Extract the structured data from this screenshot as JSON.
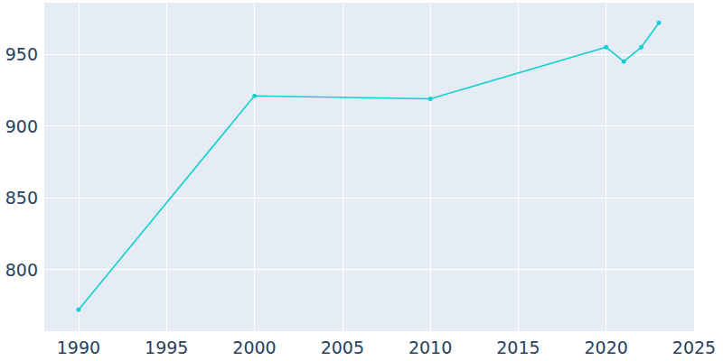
{
  "chart_data": {
    "type": "line",
    "x": [
      1990,
      2000,
      2010,
      2020,
      2021,
      2022,
      2023
    ],
    "values": [
      772,
      921,
      919,
      955,
      945,
      955,
      972
    ],
    "color": "#12d0d0",
    "marker": "circle",
    "xlim": [
      1988,
      2025
    ],
    "xticks": [
      1990,
      1995,
      2000,
      2005,
      2010,
      2015,
      2020,
      2025
    ],
    "ylim": [
      757,
      986
    ],
    "yticks": [
      800,
      850,
      900,
      950
    ],
    "grid": true
  }
}
